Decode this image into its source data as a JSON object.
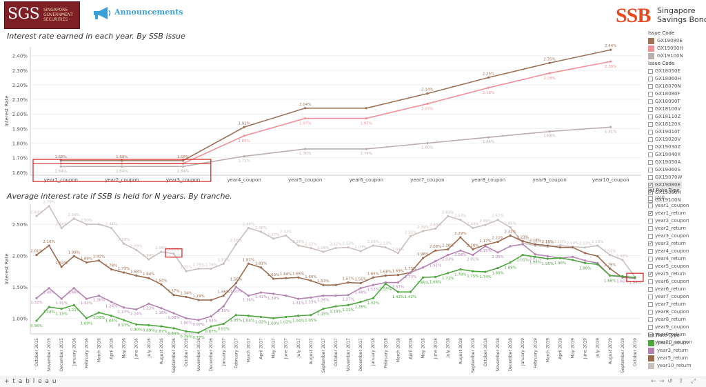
{
  "header": {
    "sgs_logo_big": "SGS",
    "sgs_logo_small": "SINGAPORE GOVERNMENT SECURITIES",
    "announcements_label": "Announcements",
    "ssb_mark": "SSB",
    "ssb_line1": "Singapore",
    "ssb_line2": "Savings Bonds",
    "brand_color": "#e8491f"
  },
  "chart_data": [
    {
      "type": "line",
      "title": "Interest rate earned in each year. By SSB issue",
      "ylabel": "Interest Rate",
      "xlabel": "",
      "categories": [
        "year1_coupon",
        "year2_coupon",
        "year3_coupon",
        "year4_coupon",
        "year5_coupon",
        "year6_coupon",
        "year7_coupon",
        "year8_coupon",
        "year9_coupon",
        "year10_coupon"
      ],
      "yticks": [
        "1.60%",
        "1.70%",
        "1.80%",
        "1.90%",
        "2.00%",
        "2.10%",
        "2.20%",
        "2.30%",
        "2.40%"
      ],
      "ylim": [
        1.58,
        2.46
      ],
      "grid": true,
      "legend_position": "right",
      "series": [
        {
          "name": "GX19080E",
          "color": "#9c7158",
          "values": [
            1.68,
            1.68,
            1.68,
            1.91,
            2.04,
            2.04,
            2.14,
            2.25,
            2.35,
            2.44
          ],
          "labels": [
            "1.68%",
            "1.68%",
            "1.68%",
            "1.91%",
            "2.04%",
            "",
            "2.14%",
            "2.25%",
            "2.35%",
            "2.44%"
          ]
        },
        {
          "name": "GX19090H",
          "color": "#f0919a",
          "values": [
            1.66,
            1.66,
            1.66,
            1.85,
            1.97,
            1.97,
            2.07,
            2.18,
            2.28,
            2.36
          ],
          "labels": [
            "",
            "",
            "",
            "1.85%",
            "1.97%",
            "1.97%",
            "2.07%",
            "2.18%",
            "2.28%",
            "2.36%"
          ]
        },
        {
          "name": "GX19100N",
          "color": "#b9aeab",
          "values": [
            1.64,
            1.64,
            1.64,
            1.71,
            1.76,
            1.76,
            1.8,
            1.84,
            1.88,
            1.91
          ],
          "labels": [
            "1.64%",
            "1.64%",
            "1.64%",
            "1.71%",
            "1.76%",
            "1.76%",
            "1.80%",
            "1.84%",
            "1.88%",
            "1.91%"
          ]
        }
      ],
      "highlight_boxes": [
        {
          "from": "year1_coupon",
          "to": "year3_coupon",
          "color": "#d11a1a"
        }
      ]
    },
    {
      "type": "line",
      "title": "Average interest rate if SSB is held for N years. By tranche.",
      "ylabel": "Interest Rate",
      "xlabel": "",
      "categories": [
        "October 2015",
        "November 2015",
        "December 2015",
        "January 2016",
        "February 2016",
        "March 2016",
        "April 2016",
        "May 2016",
        "June 2016",
        "July 2016",
        "August 2016",
        "September 2016",
        "October 2016",
        "November 2016",
        "December 2016",
        "January 2017",
        "February 2017",
        "March 2017",
        "April 2017",
        "May 2017",
        "June 2017",
        "July 2017",
        "August 2017",
        "September 2017",
        "October 2017",
        "November 2017",
        "December 2017",
        "January 2018",
        "February 2018",
        "March 2018",
        "April 2018",
        "May 2018",
        "June 2018",
        "July 2018",
        "August 2018",
        "September 2018",
        "October 2018",
        "November 2018",
        "December 2018",
        "January 2019",
        "February 2019",
        "March 2019",
        "April 2019",
        "May 2019",
        "June 2019",
        "July 2019",
        "August 2019",
        "September 2019",
        "October 2019"
      ],
      "yticks": [
        "1.00%",
        "1.50%",
        "2.00%",
        "2.50%"
      ],
      "ylim": [
        0.75,
        2.82
      ],
      "grid": true,
      "legend_position": "right",
      "series": [
        {
          "name": "year10_return",
          "color": "#c9bfbd",
          "values": [
            2.63,
            2.79,
            2.44,
            2.59,
            2.5,
            2.5,
            2.44,
            2.19,
            2.09,
            1.94,
            2.06,
            2.03,
            1.75,
            1.79,
            1.79,
            1.87,
            2.18,
            2.44,
            2.38,
            2.27,
            2.32,
            2.16,
            2.12,
            2.06,
            2.12,
            2.13,
            2.07,
            2.16,
            2.13,
            2.04,
            2.31,
            2.39,
            2.43,
            2.63,
            2.57,
            2.44,
            2.49,
            2.57,
            2.45,
            2.2,
            2.16,
            2.14,
            2.16,
            2.14,
            2.13,
            2.16,
            2.01,
            1.93,
            1.66
          ],
          "labels": [
            "2.63%",
            "2.79%",
            "2.44%",
            "2.59%",
            "2.50%",
            "",
            "2.44%",
            "2.19%",
            "2.09%",
            "1.94%",
            "2.06%",
            "2.03%",
            "1.75%",
            "1.79%",
            "1.79%",
            "1.87%",
            "2.18%",
            "2.44%",
            "2.38%",
            "2.27%",
            "2.32%",
            "2.16%",
            "2.12%",
            "2.06%",
            "2.12%",
            "2.13%",
            "2.07%",
            "2.16%",
            "2.13%",
            "2.04%",
            "2.31%",
            "2.39%",
            "2.43%",
            "2.63%",
            "2.57%",
            "2.44%",
            "2.49%",
            "2.57%",
            "2.45%",
            "2.20%",
            "2.16%",
            "2.14%",
            "2.16%",
            "2.14%",
            "2.13%",
            "2.16%",
            "2.01%",
            "1.93%",
            ""
          ]
        },
        {
          "name": "year5_return",
          "color": "#9b6b50",
          "values": [
            2.01,
            2.16,
            1.82,
            1.99,
            1.89,
            1.92,
            1.78,
            1.73,
            1.68,
            1.64,
            1.54,
            1.37,
            1.34,
            1.29,
            1.29,
            1.36,
            1.56,
            1.87,
            1.81,
            1.63,
            1.64,
            1.65,
            1.6,
            1.53,
            1.53,
            1.57,
            1.56,
            1.65,
            1.68,
            1.69,
            1.73,
            1.96,
            2.08,
            2.1,
            2.29,
            2.1,
            2.17,
            2.22,
            2.32,
            2.23,
            2.18,
            2.16,
            2.13,
            2.13,
            2.04,
            1.99,
            1.79,
            1.65,
            1.64
          ],
          "labels": [
            "2.01%",
            "2.16%",
            "1.82%",
            "1.99%",
            "1.89%",
            "1.92%",
            "1.78%",
            "1.73%",
            "1.68%",
            "1.64%",
            "1.54%",
            "1.37%",
            "1.34%",
            "1.29%",
            "",
            "1.36%",
            "1.56%",
            "1.87%",
            "1.81%",
            "1.63%",
            "1.64%",
            "1.65%",
            "1.60%",
            "1.53%",
            "",
            "1.57%",
            "1.56%",
            "1.65%",
            "1.68%",
            "1.69%",
            "1.73%",
            "1.96%",
            "2.08%",
            "2.10%",
            "2.29%",
            "2.10%",
            "2.17%",
            "2.22%",
            "2.32%",
            "2.23%",
            "2.18%",
            "2.16%",
            "",
            "",
            "",
            "",
            "1.79%",
            "",
            ""
          ]
        },
        {
          "name": "year3_return",
          "color": "#b483b2",
          "values": [
            1.32,
            1.48,
            1.31,
            1.48,
            1.31,
            1.36,
            1.26,
            1.17,
            1.14,
            1.23,
            1.16,
            1.08,
            1.0,
            0.97,
            1.03,
            1.19,
            1.5,
            1.36,
            1.41,
            1.39,
            1.36,
            1.31,
            1.33,
            1.36,
            1.36,
            1.37,
            1.48,
            1.53,
            1.57,
            1.57,
            1.73,
            1.81,
            1.91,
            2.01,
            2.08,
            2.01,
            2.15,
            2.05,
            2.15,
            2.18,
            2.02,
            1.99,
            1.96,
            1.98,
            1.92,
            1.88,
            1.68,
            1.66,
            1.64
          ],
          "labels": [
            "1.32%",
            "1.48%",
            "1.31%",
            "1.48%",
            "1.31%",
            "1.36%",
            "1.26%",
            "1.17%",
            "1.14%",
            "1.23%",
            "1.16%",
            "1.08%",
            "1.00%",
            "0.97%",
            "1.03%",
            "1.19%",
            "1.50%",
            "1.36%",
            "1.41%",
            "1.39%",
            "",
            "1.31%",
            "1.33%",
            "1.36%",
            "",
            "1.37%",
            "1.48%",
            "1.53%",
            "",
            "1.57%",
            "1.73%",
            "",
            "1.91%",
            "2.01%",
            "2.08%",
            "2.01%",
            "2.15%",
            "2.05%",
            "",
            "",
            "2.02%",
            "",
            "",
            "",
            "",
            "",
            "",
            "1.66%",
            "1.64%"
          ]
        },
        {
          "name": "year1_return",
          "color": "#4ea63f",
          "values": [
            0.96,
            1.18,
            1.15,
            1.21,
            1.0,
            1.09,
            1.04,
            0.97,
            0.9,
            0.89,
            0.87,
            0.84,
            0.79,
            0.77,
            0.87,
            0.91,
            1.05,
            1.04,
            1.02,
            1.0,
            1.02,
            1.04,
            1.05,
            1.15,
            1.19,
            1.21,
            1.26,
            1.32,
            1.55,
            1.42,
            1.42,
            1.65,
            1.66,
            1.72,
            1.78,
            1.75,
            1.74,
            1.8,
            1.89,
            2.01,
            1.98,
            1.95,
            1.96,
            1.93,
            1.88,
            1.86,
            1.68,
            1.67,
            1.65
          ],
          "labels": [
            "0.96%",
            "1.18%",
            "1.15%",
            "1.21%",
            "1.00%",
            "1.09%",
            "1.04%",
            "0.97%",
            "0.90%",
            "0.89%",
            "0.87%",
            "0.84%",
            "0.79%",
            "0.77%",
            "0.87%",
            "0.91%",
            "1.05%",
            "1.04%",
            "1.02%",
            "1.00%",
            "1.02%",
            "1.04%",
            "1.05%",
            "1.15%",
            "1.19%",
            "1.21%",
            "1.26%",
            "1.32%",
            "1.55%",
            "1.42%",
            "1.42%",
            "1.65%",
            "1.66%",
            "1.72%",
            "1.78%",
            "1.75%",
            "1.74%",
            "1.80%",
            "1.89%",
            "2.01%",
            "1.98%",
            "1.95%",
            "1.96%",
            "",
            "1.88%",
            "",
            "1.68%",
            "",
            ""
          ]
        }
      ],
      "highlight_boxes": [
        {
          "category": "September 2016",
          "series": "year10_return",
          "color": "#d11a1a"
        },
        {
          "category": "October 2019",
          "series": "year5_return",
          "color": "#d11a1a"
        }
      ]
    }
  ],
  "legend_issue_color": {
    "title": "Issue Code",
    "items": [
      {
        "label": "GX19080E",
        "color": "#9c7158"
      },
      {
        "label": "GX19090H",
        "color": "#f0919a"
      },
      {
        "label": "GX19100N",
        "color": "#b9aeab"
      }
    ]
  },
  "filter_issue": {
    "title": "Issue Code",
    "items": [
      {
        "label": "GX18050E",
        "checked": false
      },
      {
        "label": "GX18060H",
        "checked": false
      },
      {
        "label": "GX18070N",
        "checked": false
      },
      {
        "label": "GX18080F",
        "checked": false
      },
      {
        "label": "GX18090T",
        "checked": false
      },
      {
        "label": "GX18100V",
        "checked": false
      },
      {
        "label": "GX18110Z",
        "checked": false
      },
      {
        "label": "GX18120X",
        "checked": false
      },
      {
        "label": "GX19010T",
        "checked": false
      },
      {
        "label": "GX19020V",
        "checked": false
      },
      {
        "label": "GX19030Z",
        "checked": false
      },
      {
        "label": "GX19040X",
        "checked": false
      },
      {
        "label": "GX19050A",
        "checked": false
      },
      {
        "label": "GX19060S",
        "checked": false
      },
      {
        "label": "GX19070W",
        "checked": false
      },
      {
        "label": "GX19080E",
        "checked": true,
        "selected": true
      },
      {
        "label": "GX19090H",
        "checked": true
      },
      {
        "label": "GX19100N",
        "checked": true
      }
    ]
  },
  "filter_rate": {
    "title": "Int Rate Type",
    "items": [
      {
        "label": "(All)",
        "checked": false
      },
      {
        "label": "year1_coupon",
        "checked": false
      },
      {
        "label": "year1_return",
        "checked": true
      },
      {
        "label": "year2_coupon",
        "checked": false
      },
      {
        "label": "year2_return",
        "checked": false
      },
      {
        "label": "year3_coupon",
        "checked": false
      },
      {
        "label": "year3_return",
        "checked": true
      },
      {
        "label": "year4_coupon",
        "checked": false
      },
      {
        "label": "year4_return",
        "checked": false
      },
      {
        "label": "year5_coupon",
        "checked": false
      },
      {
        "label": "year5_return",
        "checked": true
      },
      {
        "label": "year6_coupon",
        "checked": false
      },
      {
        "label": "year6_return",
        "checked": false
      },
      {
        "label": "year7_coupon",
        "checked": false
      },
      {
        "label": "year7_return",
        "checked": false
      },
      {
        "label": "year8_coupon",
        "checked": false
      },
      {
        "label": "year8_return",
        "checked": false
      },
      {
        "label": "year9_coupon",
        "checked": false
      },
      {
        "label": "year9_return",
        "checked": false
      },
      {
        "label": "year10_coupon",
        "checked": false
      }
    ]
  },
  "legend_rate_color": {
    "title": "Int Rate Type",
    "items": [
      {
        "label": "year1_return",
        "color": "#4ea63f"
      },
      {
        "label": "year3_return",
        "color": "#b483b2"
      },
      {
        "label": "year5_return",
        "color": "#9b6b50"
      },
      {
        "label": "year10_return",
        "color": "#c9bfbd"
      }
    ]
  },
  "footer": {
    "tableau_mark": "+ t a b l e a u",
    "undo_icon": "undo-icon",
    "redo_icon": "redo-icon",
    "revert_icon": "revert-icon",
    "share_icon": "share-icon",
    "fullscreen_icon": "fullscreen-icon"
  }
}
